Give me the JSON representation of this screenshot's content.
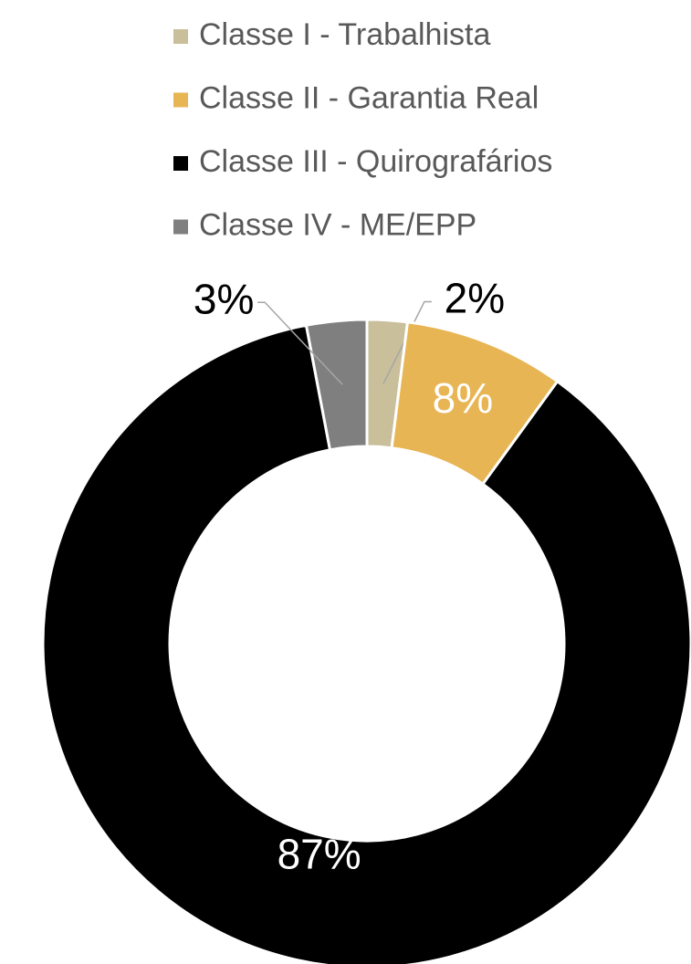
{
  "chart_data": {
    "type": "donut",
    "categories": [
      "Classe I - Trabalhista",
      "Classe II - Garantia Real",
      "Classe III - Quirografários",
      "Classe IV - ME/EPP"
    ],
    "values": [
      2,
      8,
      87,
      3
    ],
    "value_labels": [
      "2%",
      "8%",
      "87%",
      "3%"
    ],
    "colors": [
      "#c9bf9a",
      "#e8b554",
      "#000000",
      "#7f7f7f"
    ],
    "legend": "top"
  }
}
